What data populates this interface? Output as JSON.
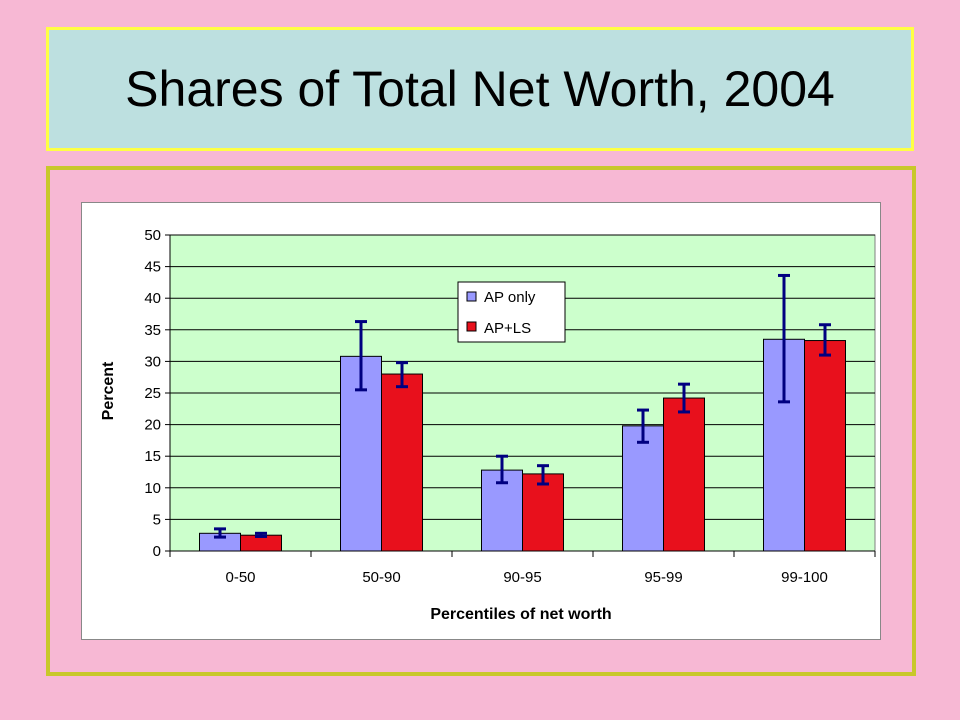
{
  "slide": {
    "title": "Shares of Total Net Worth, 2004"
  },
  "chart_data": {
    "type": "bar",
    "xlabel": "Percentiles of net worth",
    "ylabel": "Percent",
    "ylim": [
      0,
      50
    ],
    "yticks": [
      0,
      5,
      10,
      15,
      20,
      25,
      30,
      35,
      40,
      45,
      50
    ],
    "categories": [
      "0-50",
      "50-90",
      "90-95",
      "95-99",
      "99-100"
    ],
    "grid": true,
    "legend_position": "top-center",
    "series": [
      {
        "name": "AP only",
        "color": "#9999ff",
        "values": [
          2.8,
          30.8,
          12.8,
          19.8,
          33.5
        ],
        "error_low": [
          2.2,
          25.5,
          10.8,
          17.2,
          23.6
        ],
        "error_high": [
          3.5,
          36.3,
          15.0,
          22.3,
          43.6
        ]
      },
      {
        "name": "AP+LS",
        "color": "#e8101c",
        "values": [
          2.5,
          28.0,
          12.2,
          24.2,
          33.3
        ],
        "error_low": [
          2.3,
          26.0,
          10.6,
          22.0,
          31.0
        ],
        "error_high": [
          2.8,
          29.8,
          13.5,
          26.4,
          35.8
        ]
      }
    ],
    "colors": {
      "plot_background": "#ccffcc",
      "gridline": "#000000",
      "error_bar": "#000080"
    }
  }
}
